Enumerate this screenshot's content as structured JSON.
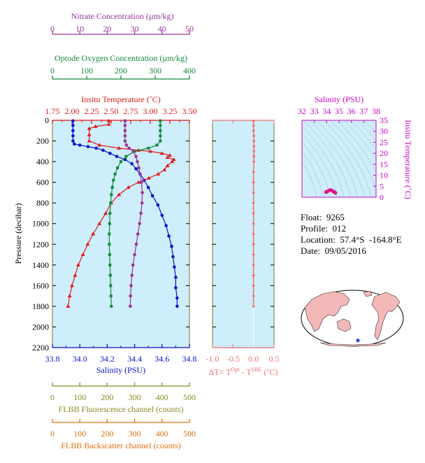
{
  "colors": {
    "panel_bg": "#cdeefa",
    "nitrate": "#993399",
    "oxygen": "#13893a",
    "temperature": "#e01818",
    "salinity": "#0a14c8",
    "delta_t": "#f07070",
    "ts_axis": "#cc00cc",
    "flbb_fluor": "#8a8a20",
    "flbb_back": "#e07010",
    "map_land": "#f5b8b8",
    "map_ocean": "#ffffff"
  },
  "meta": {
    "float": "Float:  9265",
    "profile": "Profile:  012",
    "location": "Location:  57.4°S  -164.8°E",
    "date": "Date:  09/05/2016"
  },
  "labels": {
    "nitrate_title": "Nitrate Concentration (µm/kg)",
    "oxygen_title": "Optode Oxygen Concentration (µm/kg)",
    "temp_title": "Insitu Temperature (˚C)",
    "salinity_bottom_title": "Salinity (PSU)",
    "pressure_title": "Pressure (decibar)",
    "dt_title_html": "ΔT= T",
    "dt_sup1": "Opt",
    "dt_mid": " - T",
    "dt_sup2": "SBE",
    "dt_end": " (˚C)",
    "ts_salinity_title": "Salinity (PSU)",
    "ts_temp_title": "Insitu Temperature (˚C)",
    "flbb_fluor_title": "FLBB Fluorescence channel (counts)",
    "flbb_back_title": "FLBB Backscatter channel (counts)"
  },
  "chart_data": [
    {
      "type": "line",
      "panel": "profiles",
      "y_axis": {
        "label": "Pressure (decibar)",
        "range": [
          2200,
          0
        ],
        "ticks": [
          0,
          200,
          400,
          600,
          800,
          1000,
          1200,
          1400,
          1600,
          1800,
          2000,
          2200
        ]
      },
      "x_axes": {
        "nitrate": {
          "label": "Nitrate Concentration (µm/kg)",
          "range": [
            0,
            50
          ],
          "ticks": [
            0,
            10,
            20,
            30,
            40,
            50
          ]
        },
        "oxygen": {
          "label": "Optode Oxygen Concentration (µm/kg)",
          "range": [
            0,
            400
          ],
          "ticks": [
            0,
            100,
            200,
            300,
            400
          ]
        },
        "temperature": {
          "label": "Insitu Temperature (˚C)",
          "range": [
            1.75,
            3.5
          ],
          "ticks": [
            "1.75",
            "2.00",
            "2.25",
            "2.50",
            "2.75",
            "3.00",
            "3.25",
            "3.50"
          ]
        },
        "salinity": {
          "label": "Salinity (PSU)",
          "range": [
            33.8,
            34.8
          ],
          "ticks": [
            "33.8",
            "34.0",
            "34.2",
            "34.4",
            "34.6",
            "34.8"
          ]
        }
      },
      "series": [
        {
          "name": "Salinity (PSU)",
          "axis": "salinity",
          "marker": "circle",
          "points": [
            [
              33.95,
              5
            ],
            [
              33.95,
              50
            ],
            [
              33.95,
              100
            ],
            [
              33.95,
              150
            ],
            [
              33.95,
              200
            ],
            [
              33.96,
              230
            ],
            [
              34.0,
              240
            ],
            [
              34.06,
              255
            ],
            [
              34.12,
              270
            ],
            [
              34.17,
              290
            ],
            [
              34.22,
              320
            ],
            [
              34.27,
              350
            ],
            [
              34.33,
              380
            ],
            [
              34.38,
              420
            ],
            [
              34.41,
              470
            ],
            [
              34.44,
              520
            ],
            [
              34.47,
              580
            ],
            [
              34.5,
              650
            ],
            [
              34.53,
              730
            ],
            [
              34.57,
              820
            ],
            [
              34.6,
              920
            ],
            [
              34.63,
              1020
            ],
            [
              34.65,
              1120
            ],
            [
              34.67,
              1220
            ],
            [
              34.68,
              1320
            ],
            [
              34.69,
              1420
            ],
            [
              34.7,
              1520
            ],
            [
              34.7,
              1620
            ],
            [
              34.71,
              1720
            ],
            [
              34.71,
              1800
            ]
          ]
        },
        {
          "name": "Insitu Temperature (˚C)",
          "axis": "temperature",
          "marker": "triangle",
          "points": [
            [
              2.47,
              5
            ],
            [
              2.47,
              40
            ],
            [
              2.3,
              60
            ],
            [
              2.22,
              80
            ],
            [
              2.22,
              140
            ],
            [
              2.22,
              200
            ],
            [
              2.35,
              240
            ],
            [
              2.6,
              270
            ],
            [
              2.85,
              290
            ],
            [
              3.0,
              300
            ],
            [
              3.15,
              320
            ],
            [
              3.25,
              340
            ],
            [
              3.22,
              360
            ],
            [
              3.3,
              380
            ],
            [
              3.28,
              400
            ],
            [
              3.22,
              440
            ],
            [
              3.18,
              480
            ],
            [
              3.1,
              520
            ],
            [
              2.98,
              560
            ],
            [
              2.85,
              600
            ],
            [
              2.72,
              650
            ],
            [
              2.6,
              720
            ],
            [
              2.5,
              800
            ],
            [
              2.43,
              900
            ],
            [
              2.35,
              1000
            ],
            [
              2.27,
              1100
            ],
            [
              2.2,
              1200
            ],
            [
              2.14,
              1300
            ],
            [
              2.08,
              1400
            ],
            [
              2.04,
              1500
            ],
            [
              2.0,
              1600
            ],
            [
              1.97,
              1700
            ],
            [
              1.95,
              1800
            ]
          ]
        },
        {
          "name": "Optode Oxygen Concentration (µm/kg)",
          "axis": "oxygen",
          "marker": "square",
          "points": [
            [
              315,
              5
            ],
            [
              315,
              50
            ],
            [
              315,
              100
            ],
            [
              315,
              150
            ],
            [
              315,
              200
            ],
            [
              305,
              240
            ],
            [
              280,
              270
            ],
            [
              240,
              300
            ],
            [
              215,
              350
            ],
            [
              200,
              400
            ],
            [
              190,
              460
            ],
            [
              183,
              520
            ],
            [
              178,
              580
            ],
            [
              175,
              650
            ],
            [
              172,
              720
            ],
            [
              170,
              800
            ],
            [
              168,
              900
            ],
            [
              167,
              1000
            ],
            [
              166,
              1100
            ],
            [
              166,
              1200
            ],
            [
              167,
              1300
            ],
            [
              168,
              1400
            ],
            [
              169,
              1500
            ],
            [
              170,
              1600
            ],
            [
              171,
              1700
            ],
            [
              172,
              1800
            ]
          ]
        },
        {
          "name": "Nitrate Concentration (µm/kg)",
          "axis": "nitrate",
          "marker": "circle",
          "points": [
            [
              26.5,
              5
            ],
            [
              26.5,
              50
            ],
            [
              26.5,
              100
            ],
            [
              26.5,
              150
            ],
            [
              26.5,
              200
            ],
            [
              27.0,
              240
            ],
            [
              28.0,
              270
            ],
            [
              29.5,
              300
            ],
            [
              30.5,
              350
            ],
            [
              31.0,
              400
            ],
            [
              31.5,
              460
            ],
            [
              32.0,
              520
            ],
            [
              32.5,
              600
            ],
            [
              32.8,
              700
            ],
            [
              32.7,
              800
            ],
            [
              32.3,
              900
            ],
            [
              31.8,
              1000
            ],
            [
              31.2,
              1100
            ],
            [
              30.6,
              1200
            ],
            [
              30.0,
              1300
            ],
            [
              29.4,
              1400
            ],
            [
              29.0,
              1500
            ],
            [
              28.7,
              1600
            ],
            [
              28.5,
              1700
            ],
            [
              28.4,
              1800
            ]
          ]
        }
      ],
      "bottom_extra_axes": {
        "fluorescence": {
          "label": "FLBB Fluorescence channel (counts)",
          "range": [
            0,
            500
          ],
          "ticks": [
            0,
            100,
            200,
            300,
            400,
            500
          ]
        },
        "backscatter": {
          "label": "FLBB Backscatter channel (counts)",
          "range": [
            0,
            500
          ],
          "ticks": [
            0,
            100,
            200,
            300,
            400,
            500
          ]
        }
      }
    },
    {
      "type": "line",
      "panel": "delta_t",
      "x_axis": {
        "range": [
          -1.0,
          0.5
        ],
        "ticks": [
          "-1.0",
          "-0.5",
          "0.0",
          "0.5"
        ]
      },
      "y_axis": {
        "range": [
          2200,
          0
        ]
      },
      "series": [
        {
          "name": "ΔT",
          "points": [
            [
              0.0,
              5
            ],
            [
              0.0,
              50
            ],
            [
              0.0,
              100
            ],
            [
              0.01,
              150
            ],
            [
              0.01,
              200
            ],
            [
              0.01,
              250
            ],
            [
              0.01,
              300
            ],
            [
              0.01,
              350
            ],
            [
              0.01,
              400
            ],
            [
              0.0,
              500
            ],
            [
              0.0,
              600
            ],
            [
              0.0,
              700
            ],
            [
              0.0,
              800
            ],
            [
              0.0,
              900
            ],
            [
              0.0,
              1000
            ],
            [
              0.0,
              1100
            ],
            [
              0.0,
              1200
            ],
            [
              0.0,
              1300
            ],
            [
              0.0,
              1400
            ],
            [
              0.0,
              1500
            ],
            [
              0.0,
              1600
            ],
            [
              0.0,
              1700
            ],
            [
              0.0,
              1800
            ]
          ]
        }
      ]
    },
    {
      "type": "scatter",
      "panel": "ts_diagram",
      "x_axis": {
        "label": "Salinity (PSU)",
        "range": [
          32,
          38
        ],
        "ticks": [
          32,
          33,
          34,
          35,
          36,
          37,
          38
        ]
      },
      "y_axis": {
        "label": "Insitu Temperature (˚C)",
        "range": [
          0,
          35
        ],
        "ticks": [
          0,
          5,
          10,
          15,
          20,
          25,
          30,
          35
        ]
      },
      "series": [
        {
          "name": "T-S",
          "points": [
            [
              33.95,
              2.47
            ],
            [
              33.95,
              2.22
            ],
            [
              34.0,
              2.35
            ],
            [
              34.12,
              2.85
            ],
            [
              34.22,
              3.15
            ],
            [
              34.33,
              3.3
            ],
            [
              34.41,
              3.1
            ],
            [
              34.47,
              2.85
            ],
            [
              34.53,
              2.6
            ],
            [
              34.6,
              2.4
            ],
            [
              34.65,
              2.25
            ],
            [
              34.68,
              2.1
            ],
            [
              34.7,
              2.0
            ],
            [
              34.71,
              1.95
            ]
          ]
        }
      ]
    }
  ],
  "map": {
    "marker": "float position",
    "marker_color": "#1030c0"
  }
}
